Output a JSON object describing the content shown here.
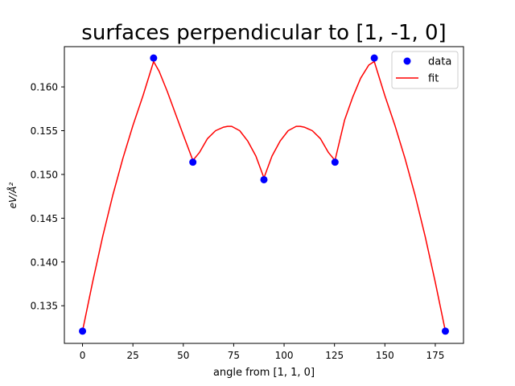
{
  "chart_data": {
    "type": "scatter",
    "title": "surfaces perpendicular to [1, -1, 0]",
    "xlabel": "angle from [1, 1, 0]",
    "ylabel": "eV/Å²",
    "xlim": [
      -9,
      189
    ],
    "ylim": [
      0.1307,
      0.1646
    ],
    "xticks": [
      0,
      25,
      50,
      75,
      100,
      125,
      150,
      175
    ],
    "yticks": [
      0.135,
      0.14,
      0.145,
      0.15,
      0.155,
      0.16
    ],
    "ytick_labels": [
      "0.135",
      "0.140",
      "0.145",
      "0.150",
      "0.155",
      "0.160"
    ],
    "grid": false,
    "legend": "top-right",
    "series": [
      {
        "name": "data",
        "kind": "scatter",
        "color": "#0000ff",
        "x": [
          0,
          35.26,
          54.74,
          90,
          125.26,
          144.74,
          180
        ],
        "y": [
          0.1321,
          0.1633,
          0.1514,
          0.1494,
          0.1514,
          0.1633,
          0.1321
        ]
      },
      {
        "name": "fit",
        "kind": "line",
        "color": "#ff0000",
        "x": [
          0,
          5,
          10,
          15,
          20,
          25,
          30,
          35.26,
          38,
          42,
          46,
          50,
          54.74,
          58,
          62,
          66,
          70,
          72,
          74,
          78,
          82,
          86,
          90,
          94,
          98,
          102,
          106,
          108,
          110,
          114,
          118,
          122,
          125.26,
          130,
          134,
          138,
          142,
          144.74,
          150,
          155,
          160,
          165,
          170,
          175,
          180
        ],
        "y": [
          0.1321,
          0.1377,
          0.1429,
          0.1476,
          0.1518,
          0.1556,
          0.159,
          0.1629,
          0.1618,
          0.1595,
          0.157,
          0.1545,
          0.1516,
          0.1525,
          0.1541,
          0.155,
          0.1554,
          0.1555,
          0.1555,
          0.155,
          0.1538,
          0.1521,
          0.1496,
          0.1521,
          0.1538,
          0.155,
          0.1555,
          0.1555,
          0.1554,
          0.155,
          0.1541,
          0.1525,
          0.1516,
          0.1562,
          0.1588,
          0.161,
          0.1625,
          0.1629,
          0.159,
          0.1556,
          0.1518,
          0.1476,
          0.1429,
          0.1377,
          0.1321
        ]
      }
    ]
  }
}
